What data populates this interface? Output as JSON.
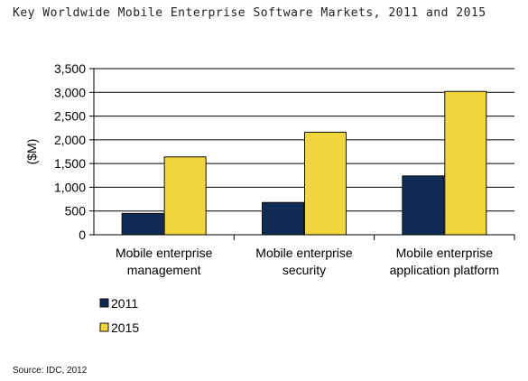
{
  "title": "Key Worldwide Mobile Enterprise Software Markets, 2011 and 2015",
  "source": "Source: IDC, 2012",
  "colors": {
    "2011": "#0f2b54",
    "2015": "#f3d63b",
    "bar_stroke": "#111111",
    "grid": "#000000"
  },
  "chart_data": {
    "type": "bar",
    "title": "Key Worldwide Mobile Enterprise Software Markets, 2011 and 2015",
    "xlabel": "",
    "ylabel": "($M)",
    "ylim": [
      0,
      3500
    ],
    "yticks": [
      0,
      500,
      1000,
      1500,
      2000,
      2500,
      3000,
      3500
    ],
    "ytick_labels": [
      "0",
      "500",
      "1,000",
      "1,500",
      "2,000",
      "2,500",
      "3,000",
      "3,500"
    ],
    "categories": [
      [
        "Mobile enterprise",
        "management"
      ],
      [
        "Mobile enterprise",
        "security"
      ],
      [
        "Mobile enterprise",
        "application platform"
      ]
    ],
    "series": [
      {
        "name": "2011",
        "values": [
          450,
          680,
          1240
        ]
      },
      {
        "name": "2015",
        "values": [
          1640,
          2160,
          3020
        ]
      }
    ],
    "grid": "horizontal",
    "legend_position": "bottom-left"
  }
}
